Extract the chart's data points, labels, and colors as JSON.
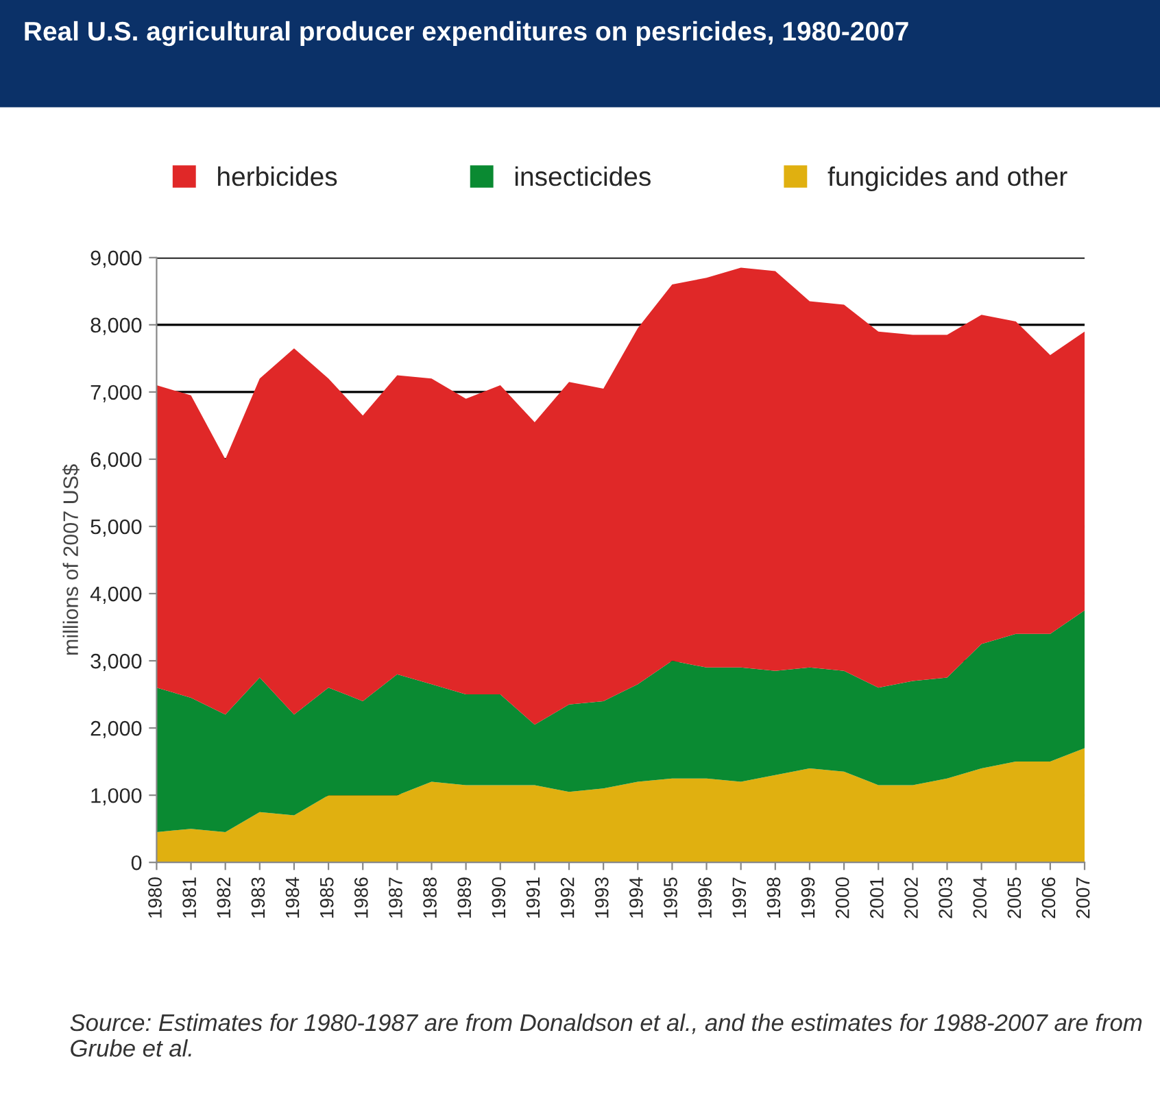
{
  "chart_data": {
    "type": "area",
    "stacked": true,
    "title": "Real U.S. agricultural producer expenditures on pesricides, 1980-2007",
    "ylabel": "millions of 2007 US$",
    "categories": [
      "1980",
      "1981",
      "1982",
      "1983",
      "1984",
      "1985",
      "1986",
      "1987",
      "1988",
      "1989",
      "1990",
      "1991",
      "1992",
      "1993",
      "1994",
      "1995",
      "1996",
      "1997",
      "1998",
      "1999",
      "2000",
      "2001",
      "2002",
      "2003",
      "2004",
      "2005",
      "2006",
      "2007"
    ],
    "series": [
      {
        "name": "fungicides and other",
        "color": "#e0b010",
        "values": [
          450,
          500,
          450,
          750,
          700,
          1000,
          1000,
          1000,
          1200,
          1150,
          1150,
          1150,
          1050,
          1100,
          1200,
          1250,
          1250,
          1200,
          1300,
          1400,
          1350,
          1150,
          1150,
          1250,
          1400,
          1500,
          1500,
          1700
        ]
      },
      {
        "name": "insecticides",
        "color": "#0a8a32",
        "values": [
          2150,
          1950,
          1750,
          2000,
          1500,
          1600,
          1400,
          1800,
          1450,
          1350,
          1350,
          900,
          1300,
          1300,
          1450,
          1750,
          1650,
          1700,
          1550,
          1500,
          1500,
          1450,
          1550,
          1500,
          1850,
          1900,
          1900,
          2050
        ]
      },
      {
        "name": "herbicides",
        "color": "#e02828",
        "values": [
          4500,
          4500,
          3800,
          4450,
          5450,
          4600,
          4250,
          4450,
          4550,
          4400,
          4600,
          4500,
          4800,
          4650,
          5300,
          5600,
          5800,
          5950,
          5950,
          5450,
          5450,
          5300,
          5150,
          5100,
          4900,
          4650,
          4150,
          4150
        ]
      }
    ],
    "ylim": [
      0,
      9000
    ],
    "yticks": [
      {
        "value": 0,
        "label": "0"
      },
      {
        "value": 1000,
        "label": "1,000"
      },
      {
        "value": 2000,
        "label": "2,000"
      },
      {
        "value": 3000,
        "label": "3,000"
      },
      {
        "value": 4000,
        "label": "4,000"
      },
      {
        "value": 5000,
        "label": "5,000"
      },
      {
        "value": 6000,
        "label": "6,000"
      },
      {
        "value": 7000,
        "label": "7,000"
      },
      {
        "value": 8000,
        "label": "8,000"
      },
      {
        "value": 9000,
        "label": "9,000"
      }
    ],
    "grid": "y",
    "legend": "top",
    "annotations": [
      "Source: Estimates for 1980-1987 are from Donaldson et al., and the estimates for 1988-2007 are from Grube et al."
    ]
  }
}
